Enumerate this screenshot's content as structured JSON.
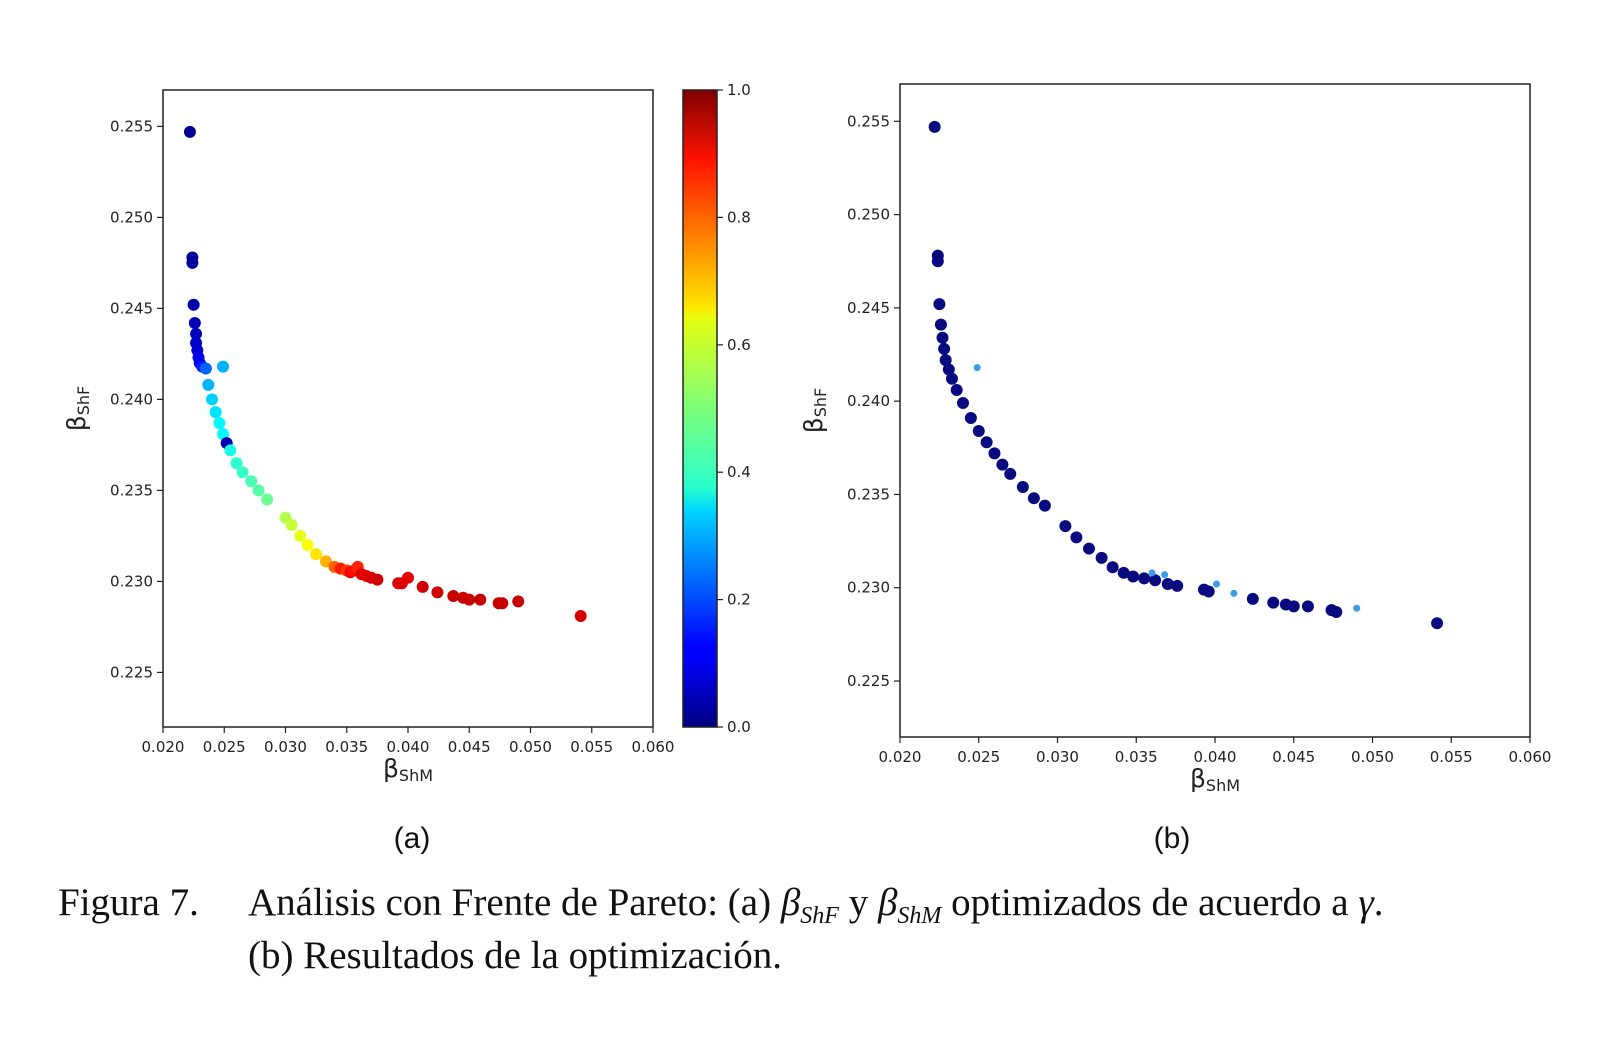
{
  "panel_labels": [
    "(a)",
    "(b)"
  ],
  "caption": {
    "number": "Figura 7.",
    "line1_prefix": "Análisis con Frente de Pareto: (a) ",
    "beta": "β",
    "shf": "ShF",
    "shm": "ShM",
    "y_word": " y ",
    "line1_suffix": " optimizados de acuerdo a ",
    "gamma": "γ",
    "period": ".",
    "line2": "(b) Resultados de la optimización."
  },
  "colorbar": {
    "ticks": [
      "0.0",
      "0.2",
      "0.4",
      "0.6",
      "0.8",
      "1.0"
    ],
    "range": [
      0,
      1
    ],
    "colormap": "jet"
  },
  "chart_data": [
    {
      "type": "scatter",
      "panel": "(a)",
      "xlabel": {
        "symbol": "β",
        "sub": "ShM"
      },
      "ylabel": {
        "symbol": "β",
        "sub": "ShF"
      },
      "xlim": [
        0.02,
        0.06
      ],
      "ylim": [
        0.222,
        0.257
      ],
      "xticks": [
        "0.020",
        "0.025",
        "0.030",
        "0.035",
        "0.040",
        "0.045",
        "0.050",
        "0.055",
        "0.060"
      ],
      "yticks": [
        "0.225",
        "0.230",
        "0.235",
        "0.240",
        "0.245",
        "0.250",
        "0.255"
      ],
      "grid": false,
      "color_by": "value",
      "points": [
        {
          "x": 0.0222,
          "y": 0.2547,
          "c": 0.02
        },
        {
          "x": 0.0224,
          "y": 0.2478,
          "c": 0.03
        },
        {
          "x": 0.0224,
          "y": 0.2475,
          "c": 0.03
        },
        {
          "x": 0.0225,
          "y": 0.2452,
          "c": 0.04
        },
        {
          "x": 0.0226,
          "y": 0.2442,
          "c": 0.05
        },
        {
          "x": 0.0227,
          "y": 0.2436,
          "c": 0.06
        },
        {
          "x": 0.0227,
          "y": 0.2431,
          "c": 0.07
        },
        {
          "x": 0.0228,
          "y": 0.2427,
          "c": 0.08
        },
        {
          "x": 0.0229,
          "y": 0.2423,
          "c": 0.1
        },
        {
          "x": 0.023,
          "y": 0.242,
          "c": 0.12
        },
        {
          "x": 0.0232,
          "y": 0.2418,
          "c": 0.15
        },
        {
          "x": 0.0235,
          "y": 0.2417,
          "c": 0.22
        },
        {
          "x": 0.0249,
          "y": 0.2418,
          "c": 0.3
        },
        {
          "x": 0.0237,
          "y": 0.2408,
          "c": 0.3
        },
        {
          "x": 0.024,
          "y": 0.24,
          "c": 0.33
        },
        {
          "x": 0.0243,
          "y": 0.2393,
          "c": 0.35
        },
        {
          "x": 0.0246,
          "y": 0.2387,
          "c": 0.37
        },
        {
          "x": 0.0249,
          "y": 0.2381,
          "c": 0.38
        },
        {
          "x": 0.0252,
          "y": 0.2376,
          "c": 0.05
        },
        {
          "x": 0.0255,
          "y": 0.2372,
          "c": 0.4
        },
        {
          "x": 0.026,
          "y": 0.2365,
          "c": 0.42
        },
        {
          "x": 0.0265,
          "y": 0.236,
          "c": 0.43
        },
        {
          "x": 0.0272,
          "y": 0.2355,
          "c": 0.45
        },
        {
          "x": 0.0278,
          "y": 0.235,
          "c": 0.46
        },
        {
          "x": 0.0285,
          "y": 0.2345,
          "c": 0.48
        },
        {
          "x": 0.03,
          "y": 0.2335,
          "c": 0.55
        },
        {
          "x": 0.0305,
          "y": 0.2331,
          "c": 0.57
        },
        {
          "x": 0.0312,
          "y": 0.2325,
          "c": 0.6
        },
        {
          "x": 0.0318,
          "y": 0.232,
          "c": 0.62
        },
        {
          "x": 0.0325,
          "y": 0.2315,
          "c": 0.65
        },
        {
          "x": 0.0333,
          "y": 0.2311,
          "c": 0.7
        },
        {
          "x": 0.034,
          "y": 0.2308,
          "c": 0.78
        },
        {
          "x": 0.0345,
          "y": 0.2307,
          "c": 0.85
        },
        {
          "x": 0.035,
          "y": 0.2306,
          "c": 0.82
        },
        {
          "x": 0.0353,
          "y": 0.2305,
          "c": 0.88
        },
        {
          "x": 0.0356,
          "y": 0.2306,
          "c": 0.86
        },
        {
          "x": 0.0359,
          "y": 0.2308,
          "c": 0.84
        },
        {
          "x": 0.0362,
          "y": 0.2304,
          "c": 0.9
        },
        {
          "x": 0.0366,
          "y": 0.2303,
          "c": 0.9
        },
        {
          "x": 0.037,
          "y": 0.2302,
          "c": 0.91
        },
        {
          "x": 0.0375,
          "y": 0.2301,
          "c": 0.92
        },
        {
          "x": 0.0392,
          "y": 0.2299,
          "c": 0.91
        },
        {
          "x": 0.0395,
          "y": 0.2299,
          "c": 0.91
        },
        {
          "x": 0.04,
          "y": 0.2302,
          "c": 0.9
        },
        {
          "x": 0.0412,
          "y": 0.2297,
          "c": 0.92
        },
        {
          "x": 0.0424,
          "y": 0.2294,
          "c": 0.92
        },
        {
          "x": 0.0437,
          "y": 0.2292,
          "c": 0.93
        },
        {
          "x": 0.0445,
          "y": 0.2291,
          "c": 0.93
        },
        {
          "x": 0.045,
          "y": 0.229,
          "c": 0.93
        },
        {
          "x": 0.0459,
          "y": 0.229,
          "c": 0.93
        },
        {
          "x": 0.0474,
          "y": 0.2288,
          "c": 0.93
        },
        {
          "x": 0.0477,
          "y": 0.2288,
          "c": 0.93
        },
        {
          "x": 0.049,
          "y": 0.2289,
          "c": 0.93
        },
        {
          "x": 0.0541,
          "y": 0.2281,
          "c": 0.92
        }
      ]
    },
    {
      "type": "scatter",
      "panel": "(b)",
      "xlabel": {
        "symbol": "β",
        "sub": "ShM"
      },
      "ylabel": {
        "symbol": "β",
        "sub": "ShF"
      },
      "xlim": [
        0.02,
        0.06
      ],
      "ylim": [
        0.222,
        0.257
      ],
      "xticks": [
        "0.020",
        "0.025",
        "0.030",
        "0.035",
        "0.040",
        "0.045",
        "0.050",
        "0.055",
        "0.060"
      ],
      "yticks": [
        "0.225",
        "0.230",
        "0.235",
        "0.240",
        "0.245",
        "0.250",
        "0.255"
      ],
      "grid": false,
      "colors": {
        "optimal": "#0a0a80",
        "other": "#3a9ee6"
      },
      "points": [
        {
          "x": 0.0222,
          "y": 0.2547,
          "group": "optimal"
        },
        {
          "x": 0.0224,
          "y": 0.2478,
          "group": "optimal"
        },
        {
          "x": 0.0224,
          "y": 0.2475,
          "group": "optimal"
        },
        {
          "x": 0.0225,
          "y": 0.2452,
          "group": "optimal"
        },
        {
          "x": 0.0226,
          "y": 0.2441,
          "group": "optimal"
        },
        {
          "x": 0.0227,
          "y": 0.2434,
          "group": "optimal"
        },
        {
          "x": 0.0228,
          "y": 0.2428,
          "group": "optimal"
        },
        {
          "x": 0.0229,
          "y": 0.2422,
          "group": "optimal"
        },
        {
          "x": 0.0231,
          "y": 0.2417,
          "group": "optimal"
        },
        {
          "x": 0.0233,
          "y": 0.2412,
          "group": "optimal"
        },
        {
          "x": 0.0236,
          "y": 0.2406,
          "group": "optimal"
        },
        {
          "x": 0.0249,
          "y": 0.2418,
          "group": "other"
        },
        {
          "x": 0.024,
          "y": 0.2399,
          "group": "optimal"
        },
        {
          "x": 0.0245,
          "y": 0.2391,
          "group": "optimal"
        },
        {
          "x": 0.025,
          "y": 0.2384,
          "group": "optimal"
        },
        {
          "x": 0.0255,
          "y": 0.2378,
          "group": "optimal"
        },
        {
          "x": 0.026,
          "y": 0.2372,
          "group": "optimal"
        },
        {
          "x": 0.0265,
          "y": 0.2366,
          "group": "optimal"
        },
        {
          "x": 0.027,
          "y": 0.2361,
          "group": "optimal"
        },
        {
          "x": 0.0278,
          "y": 0.2354,
          "group": "optimal"
        },
        {
          "x": 0.0285,
          "y": 0.2348,
          "group": "optimal"
        },
        {
          "x": 0.0292,
          "y": 0.2344,
          "group": "optimal"
        },
        {
          "x": 0.0305,
          "y": 0.2333,
          "group": "optimal"
        },
        {
          "x": 0.0312,
          "y": 0.2327,
          "group": "optimal"
        },
        {
          "x": 0.032,
          "y": 0.2321,
          "group": "optimal"
        },
        {
          "x": 0.0328,
          "y": 0.2316,
          "group": "optimal"
        },
        {
          "x": 0.0335,
          "y": 0.2311,
          "group": "optimal"
        },
        {
          "x": 0.0342,
          "y": 0.2308,
          "group": "optimal"
        },
        {
          "x": 0.0348,
          "y": 0.2306,
          "group": "optimal"
        },
        {
          "x": 0.0355,
          "y": 0.2305,
          "group": "optimal"
        },
        {
          "x": 0.0362,
          "y": 0.2304,
          "group": "optimal"
        },
        {
          "x": 0.036,
          "y": 0.2308,
          "group": "other"
        },
        {
          "x": 0.0368,
          "y": 0.2307,
          "group": "other"
        },
        {
          "x": 0.037,
          "y": 0.2302,
          "group": "optimal"
        },
        {
          "x": 0.0376,
          "y": 0.2301,
          "group": "optimal"
        },
        {
          "x": 0.0393,
          "y": 0.2299,
          "group": "optimal"
        },
        {
          "x": 0.0396,
          "y": 0.2298,
          "group": "optimal"
        },
        {
          "x": 0.0401,
          "y": 0.2302,
          "group": "other"
        },
        {
          "x": 0.0412,
          "y": 0.2297,
          "group": "other"
        },
        {
          "x": 0.0424,
          "y": 0.2294,
          "group": "optimal"
        },
        {
          "x": 0.0437,
          "y": 0.2292,
          "group": "optimal"
        },
        {
          "x": 0.0445,
          "y": 0.2291,
          "group": "optimal"
        },
        {
          "x": 0.045,
          "y": 0.229,
          "group": "optimal"
        },
        {
          "x": 0.0459,
          "y": 0.229,
          "group": "optimal"
        },
        {
          "x": 0.0474,
          "y": 0.2288,
          "group": "optimal"
        },
        {
          "x": 0.0477,
          "y": 0.2287,
          "group": "optimal"
        },
        {
          "x": 0.049,
          "y": 0.2289,
          "group": "other"
        },
        {
          "x": 0.0541,
          "y": 0.2281,
          "group": "optimal"
        }
      ]
    }
  ]
}
